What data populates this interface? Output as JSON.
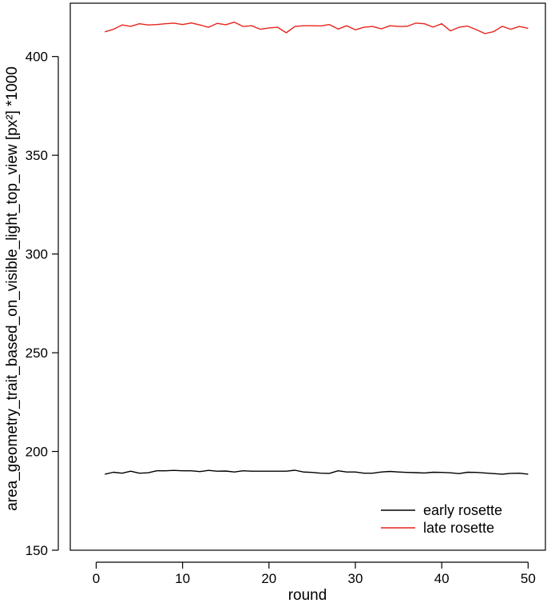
{
  "chart_data": {
    "type": "line",
    "xlabel": "round",
    "ylabel": "area_geometry_trait_based_on_visible_light_top_view [px²] *1000",
    "xlim": [
      -3,
      52
    ],
    "ylim": [
      150,
      427
    ],
    "x_ticks": [
      0,
      10,
      20,
      30,
      40,
      50
    ],
    "y_ticks": [
      150,
      200,
      250,
      300,
      350,
      400
    ],
    "grid": false,
    "legend": "bottom-right",
    "x": [
      1,
      2,
      3,
      4,
      5,
      6,
      7,
      8,
      9,
      10,
      11,
      12,
      13,
      14,
      15,
      16,
      17,
      18,
      19,
      20,
      21,
      22,
      23,
      24,
      25,
      26,
      27,
      28,
      29,
      30,
      31,
      32,
      33,
      34,
      35,
      36,
      37,
      38,
      39,
      40,
      41,
      42,
      43,
      44,
      45,
      46,
      47,
      48,
      49,
      50
    ],
    "series": [
      {
        "name": "early rosette",
        "color": "#000000",
        "values": [
          188.5,
          189.5,
          189.0,
          190.0,
          189.0,
          189.2,
          190.2,
          190.2,
          190.4,
          190.2,
          190.2,
          189.8,
          190.4,
          190.0,
          190.1,
          189.6,
          190.2,
          190.0,
          190.0,
          190.0,
          190.0,
          190.0,
          190.5,
          189.6,
          189.4,
          189.0,
          188.9,
          190.2,
          189.6,
          189.6,
          189.0,
          189.0,
          189.6,
          189.9,
          189.6,
          189.4,
          189.3,
          189.1,
          189.5,
          189.4,
          189.2,
          188.8,
          189.5,
          189.4,
          189.1,
          188.8,
          188.5,
          188.9,
          189.0,
          188.5
        ]
      },
      {
        "name": "late rosette",
        "color": "#e8241d",
        "values": [
          412.5,
          413.8,
          416.0,
          415.3,
          416.6,
          416.0,
          416.2,
          416.6,
          416.9,
          416.2,
          417.0,
          416.0,
          414.8,
          416.8,
          416.1,
          417.4,
          415.2,
          415.6,
          413.8,
          414.5,
          414.8,
          412.0,
          415.2,
          415.6,
          415.6,
          415.5,
          416.2,
          413.9,
          415.6,
          413.5,
          414.8,
          415.2,
          414.0,
          415.6,
          415.2,
          415.3,
          416.9,
          416.6,
          414.9,
          416.6,
          413.0,
          414.8,
          415.4,
          413.6,
          411.6,
          412.6,
          415.3,
          413.8,
          415.2,
          414.3
        ]
      }
    ]
  }
}
